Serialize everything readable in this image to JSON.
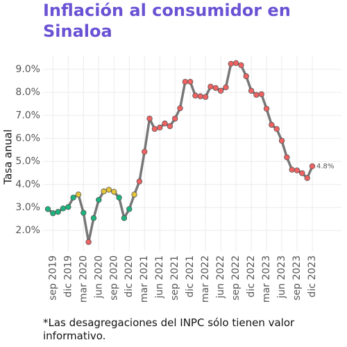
{
  "chart_data": {
    "type": "line",
    "title": "Inflación al consumidor en Sinaloa",
    "y_label": "Tasa anual",
    "footnote": "*Las desagregaciones del INPC sólo tienen valor informativo.",
    "x": [
      "2019-08",
      "2019-09",
      "2019-10",
      "2019-11",
      "2019-12",
      "2020-01",
      "2020-02",
      "2020-03",
      "2020-04",
      "2020-05",
      "2020-06",
      "2020-07",
      "2020-08",
      "2020-09",
      "2020-10",
      "2020-11",
      "2020-12",
      "2021-01",
      "2021-02",
      "2021-03",
      "2021-04",
      "2021-05",
      "2021-06",
      "2021-07",
      "2021-08",
      "2021-09",
      "2021-10",
      "2021-11",
      "2021-12",
      "2022-01",
      "2022-02",
      "2022-03",
      "2022-04",
      "2022-05",
      "2022-06",
      "2022-07",
      "2022-08",
      "2022-09",
      "2022-10",
      "2022-11",
      "2022-12",
      "2023-01",
      "2023-02",
      "2023-03",
      "2023-04",
      "2023-05",
      "2023-06",
      "2023-07",
      "2023-08",
      "2023-09",
      "2023-10",
      "2023-11",
      "2023-12"
    ],
    "series": [
      {
        "name": "Tasa anual",
        "color": "#777777",
        "values": [
          2.93,
          2.75,
          2.81,
          2.96,
          3.02,
          3.43,
          3.56,
          2.77,
          1.5,
          2.54,
          3.33,
          3.7,
          3.77,
          3.68,
          3.43,
          2.54,
          2.93,
          3.56,
          4.13,
          5.42,
          6.86,
          6.41,
          6.47,
          6.65,
          6.53,
          6.86,
          7.31,
          8.46,
          8.46,
          7.86,
          7.83,
          7.8,
          8.25,
          8.19,
          8.07,
          8.22,
          9.24,
          9.27,
          9.18,
          8.7,
          8.07,
          7.89,
          7.92,
          7.29,
          6.59,
          6.41,
          5.9,
          5.18,
          4.64,
          4.61,
          4.49,
          4.28,
          4.79
        ],
        "value_labels": [
          null,
          null,
          null,
          null,
          null,
          null,
          null,
          null,
          null,
          null,
          null,
          null,
          null,
          null,
          null,
          null,
          null,
          null,
          null,
          null,
          null,
          null,
          null,
          null,
          null,
          null,
          null,
          null,
          null,
          null,
          null,
          null,
          null,
          null,
          null,
          null,
          null,
          null,
          null,
          null,
          null,
          null,
          null,
          null,
          null,
          null,
          null,
          null,
          null,
          null,
          null,
          null,
          "4.8%"
        ],
        "point_colors": [
          "#1db37c",
          "#1db37c",
          "#1db37c",
          "#1db37c",
          "#1db37c",
          "#1db37c",
          "#e3c43a",
          "#1db37c",
          "#f06262",
          "#1db37c",
          "#1db37c",
          "#e3c43a",
          "#e3c43a",
          "#e3c43a",
          "#1db37c",
          "#1db37c",
          "#1db37c",
          "#e3c43a",
          "#f06262",
          "#f06262",
          "#f06262",
          "#f06262",
          "#f06262",
          "#f06262",
          "#f06262",
          "#f06262",
          "#f06262",
          "#f06262",
          "#f06262",
          "#f06262",
          "#f06262",
          "#f06262",
          "#f06262",
          "#f06262",
          "#f06262",
          "#f06262",
          "#f06262",
          "#f06262",
          "#f06262",
          "#f06262",
          "#f06262",
          "#f06262",
          "#f06262",
          "#f06262",
          "#f06262",
          "#f06262",
          "#f06262",
          "#f06262",
          "#f06262",
          "#f06262",
          "#f06262",
          "#f06262",
          "#f06262"
        ]
      }
    ],
    "ylim": [
      1.1,
      9.6
    ],
    "yticks": [
      {
        "value": 2,
        "label": "2.0%"
      },
      {
        "value": 3,
        "label": "3.0%"
      },
      {
        "value": 4,
        "label": "4.0%"
      },
      {
        "value": 5,
        "label": "5.0%"
      },
      {
        "value": 6,
        "label": "6.0%"
      },
      {
        "value": 7,
        "label": "7.0%"
      },
      {
        "value": 8,
        "label": "8.0%"
      },
      {
        "value": 9,
        "label": "9.0%"
      }
    ],
    "xticks": [
      {
        "value": "2019-09",
        "label": "sep 2019"
      },
      {
        "value": "2019-12",
        "label": "dic 2019"
      },
      {
        "value": "2020-03",
        "label": "mar 2020"
      },
      {
        "value": "2020-06",
        "label": "jun 2020"
      },
      {
        "value": "2020-09",
        "label": "sep 2020"
      },
      {
        "value": "2020-12",
        "label": "dic 2020"
      },
      {
        "value": "2021-03",
        "label": "mar 2021"
      },
      {
        "value": "2021-06",
        "label": "jun 2021"
      },
      {
        "value": "2021-09",
        "label": "sep 2021"
      },
      {
        "value": "2021-12",
        "label": "dic 2021"
      },
      {
        "value": "2022-03",
        "label": "mar 2022"
      },
      {
        "value": "2022-06",
        "label": "jun 2022"
      },
      {
        "value": "2022-09",
        "label": "sep 2022"
      },
      {
        "value": "2022-12",
        "label": "dic 2022"
      },
      {
        "value": "2023-03",
        "label": "mar 2023"
      },
      {
        "value": "2023-06",
        "label": "jun 2023"
      },
      {
        "value": "2023-09",
        "label": "sep 2023"
      },
      {
        "value": "2023-12",
        "label": "dic 2023"
      }
    ],
    "grid": true
  }
}
